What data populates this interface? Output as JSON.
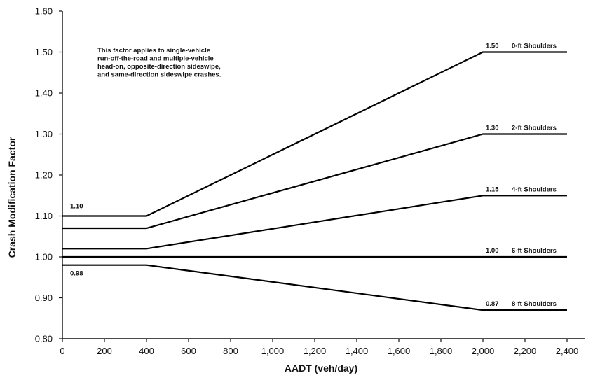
{
  "chart_data": {
    "type": "line",
    "xlabel": "AADT (veh/day)",
    "ylabel": "Crash Modification Factor",
    "xlim": [
      0,
      2400
    ],
    "ylim": [
      0.8,
      1.6
    ],
    "x_ticks": [
      "0",
      "200",
      "400",
      "600",
      "800",
      "1,000",
      "1,200",
      "1,400",
      "1,600",
      "1,800",
      "2,000",
      "2,200",
      "2,400"
    ],
    "y_ticks": [
      "0.80",
      "0.90",
      "1.00",
      "1.10",
      "1.20",
      "1.30",
      "1.40",
      "1.50",
      "1.60"
    ],
    "grid": false,
    "note": [
      "This factor applies to single-vehicle",
      "run-off-the-road and multiple-vehicle",
      "head-on, opposite-direction sideswipe,",
      "and same-direction sideswipe crashes."
    ],
    "series": [
      {
        "name": "0-ft Shoulders",
        "end_label": "1.50",
        "start_label": "1.10",
        "x": [
          0,
          400,
          2000,
          2400
        ],
        "y": [
          1.1,
          1.1,
          1.5,
          1.5
        ]
      },
      {
        "name": "2-ft Shoulders",
        "end_label": "1.30",
        "x": [
          0,
          400,
          2000,
          2400
        ],
        "y": [
          1.07,
          1.07,
          1.3,
          1.3
        ]
      },
      {
        "name": "4-ft Shoulders",
        "end_label": "1.15",
        "x": [
          0,
          400,
          2000,
          2400
        ],
        "y": [
          1.02,
          1.02,
          1.15,
          1.15
        ]
      },
      {
        "name": "6-ft Shoulders",
        "end_label": "1.00",
        "x": [
          0,
          400,
          2000,
          2400
        ],
        "y": [
          1.0,
          1.0,
          1.0,
          1.0
        ]
      },
      {
        "name": "8-ft Shoulders",
        "end_label": "0.87",
        "start_label": "0.98",
        "x": [
          0,
          400,
          2000,
          2400
        ],
        "y": [
          0.98,
          0.98,
          0.87,
          0.87
        ]
      }
    ]
  }
}
